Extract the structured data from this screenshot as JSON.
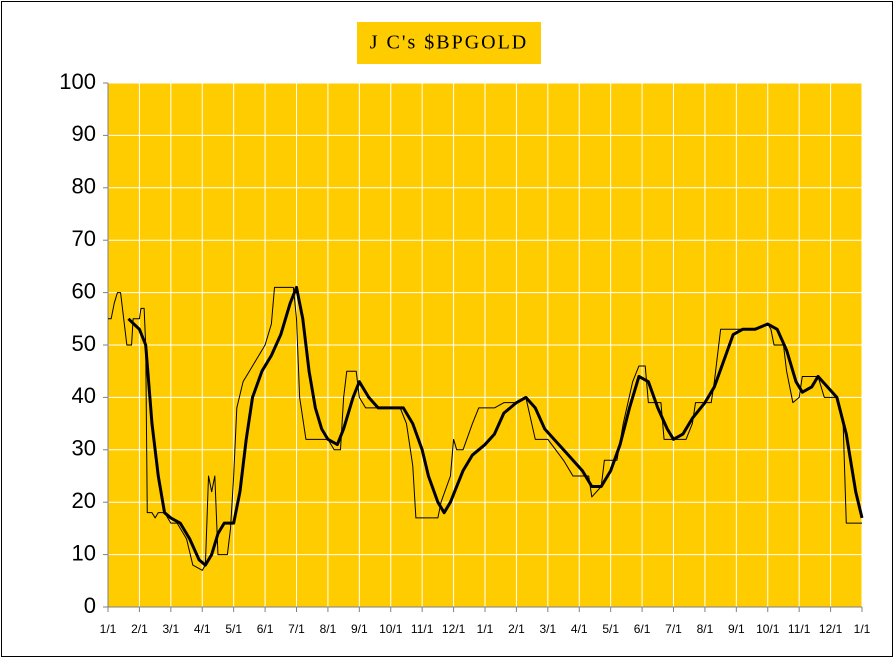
{
  "chart_data": {
    "type": "line",
    "title": "J C's $BPGOLD",
    "plot_background": "#FFCC00",
    "grid": true,
    "grid_color": "#ffffff",
    "xlim": [
      0,
      24
    ],
    "ylim": [
      0,
      100
    ],
    "yticks": [
      0,
      10,
      20,
      30,
      40,
      50,
      60,
      70,
      80,
      90,
      100
    ],
    "xticks": [
      {
        "value": 0,
        "label": "1/1"
      },
      {
        "value": 1,
        "label": "2/1"
      },
      {
        "value": 2,
        "label": "3/1"
      },
      {
        "value": 3,
        "label": "4/1"
      },
      {
        "value": 4,
        "label": "5/1"
      },
      {
        "value": 5,
        "label": "6/1"
      },
      {
        "value": 6,
        "label": "7/1"
      },
      {
        "value": 7,
        "label": "8/1"
      },
      {
        "value": 8,
        "label": "9/1"
      },
      {
        "value": 9,
        "label": "10/1"
      },
      {
        "value": 10,
        "label": "11/1"
      },
      {
        "value": 11,
        "label": "12/1"
      },
      {
        "value": 12,
        "label": "1/1"
      },
      {
        "value": 13,
        "label": "2/1"
      },
      {
        "value": 14,
        "label": "3/1"
      },
      {
        "value": 15,
        "label": "4/1"
      },
      {
        "value": 16,
        "label": "5/1"
      },
      {
        "value": 17,
        "label": "6/1"
      },
      {
        "value": 18,
        "label": "7/1"
      },
      {
        "value": 19,
        "label": "8/1"
      },
      {
        "value": 20,
        "label": "9/1"
      },
      {
        "value": 21,
        "label": "10/1"
      },
      {
        "value": 22,
        "label": "11/1"
      },
      {
        "value": 23,
        "label": "12/1"
      },
      {
        "value": 24,
        "label": "1/1"
      }
    ],
    "series": [
      {
        "color": "#000000",
        "line_width": 1,
        "x": [
          0,
          0.1,
          0.2,
          0.3,
          0.4,
          0.5,
          0.6,
          0.75,
          0.8,
          1.0,
          1.05,
          1.15,
          1.2,
          1.25,
          1.4,
          1.5,
          1.6,
          1.8,
          2.0,
          2.2,
          2.3,
          2.5,
          2.7,
          3.0,
          3.1,
          3.2,
          3.3,
          3.4,
          3.5,
          3.8,
          3.9,
          4.0,
          4.1,
          4.3,
          4.5,
          4.7,
          5.0,
          5.2,
          5.3,
          5.9,
          6.0,
          6.1,
          6.3,
          7.0,
          7.2,
          7.4,
          7.5,
          7.6,
          7.9,
          8.0,
          8.2,
          9.3,
          9.5,
          9.7,
          9.8,
          10.5,
          10.6,
          10.9,
          11.0,
          11.1,
          11.3,
          11.6,
          11.8,
          12.0,
          12.3,
          12.6,
          13.0,
          13.3,
          13.6,
          14.0,
          14.5,
          14.8,
          15.3,
          15.4,
          15.7,
          15.8,
          16.2,
          16.4,
          16.7,
          16.9,
          17.1,
          17.2,
          17.6,
          17.7,
          18.4,
          18.6,
          18.7,
          19.2,
          19.3,
          19.5,
          20.5,
          21.0,
          21.1,
          21.2,
          21.5,
          21.6,
          21.8,
          22.0,
          22.1,
          22.6,
          22.8,
          23.2,
          23.4,
          23.5,
          24.0
        ],
        "values": [
          55,
          55,
          58,
          60,
          60,
          55,
          50,
          50,
          55,
          55,
          57,
          57,
          50,
          18,
          18,
          17,
          18,
          18,
          16,
          16,
          15,
          13,
          8,
          7,
          8,
          25,
          22,
          25,
          10,
          10,
          15,
          25,
          38,
          43,
          45,
          47,
          50,
          54,
          61,
          61,
          55,
          40,
          32,
          32,
          30,
          30,
          40,
          45,
          45,
          40,
          38,
          38,
          35,
          27,
          17,
          17,
          20,
          25,
          32,
          30,
          30,
          35,
          38,
          38,
          38,
          39,
          39,
          40,
          32,
          32,
          28,
          25,
          25,
          21,
          23,
          28,
          28,
          35,
          43,
          46,
          46,
          39,
          39,
          32,
          32,
          35,
          39,
          39,
          43,
          53,
          53,
          54,
          53,
          50,
          50,
          45,
          39,
          40,
          44,
          44,
          40,
          40,
          35,
          16,
          16
        ]
      },
      {
        "color": "#000000",
        "line_width": 3,
        "x": [
          0.65,
          1.0,
          1.2,
          1.4,
          1.6,
          1.8,
          2.0,
          2.3,
          2.6,
          2.9,
          3.1,
          3.3,
          3.5,
          3.7,
          4.0,
          4.2,
          4.4,
          4.6,
          4.9,
          5.2,
          5.5,
          5.8,
          6.0,
          6.2,
          6.4,
          6.6,
          6.8,
          7.0,
          7.3,
          7.5,
          7.8,
          8.0,
          8.3,
          8.6,
          9.0,
          9.4,
          9.7,
          10.0,
          10.2,
          10.5,
          10.7,
          10.9,
          11.1,
          11.3,
          11.6,
          12.0,
          12.3,
          12.6,
          13.0,
          13.3,
          13.6,
          13.9,
          14.2,
          14.5,
          14.8,
          15.1,
          15.4,
          15.7,
          16.0,
          16.3,
          16.6,
          16.9,
          17.2,
          17.5,
          17.8,
          18.0,
          18.3,
          18.6,
          19.0,
          19.3,
          19.6,
          19.9,
          20.2,
          20.6,
          21.0,
          21.3,
          21.6,
          21.9,
          22.1,
          22.4,
          22.6,
          22.9,
          23.2,
          23.5,
          23.8,
          24.0
        ],
        "values": [
          55,
          53,
          50,
          35,
          25,
          18,
          17,
          16,
          13,
          9,
          8,
          10,
          14,
          16,
          16,
          22,
          32,
          40,
          45,
          48,
          52,
          58,
          61,
          55,
          45,
          38,
          34,
          32,
          31,
          34,
          40,
          43,
          40,
          38,
          38,
          38,
          35,
          30,
          25,
          20,
          18,
          20,
          23,
          26,
          29,
          31,
          33,
          37,
          39,
          40,
          38,
          34,
          32,
          30,
          28,
          26,
          23,
          23,
          26,
          31,
          38,
          44,
          43,
          38,
          34,
          32,
          33,
          36,
          39,
          42,
          47,
          52,
          53,
          53,
          54,
          53,
          49,
          43,
          41,
          42,
          44,
          42,
          40,
          33,
          22,
          17
        ]
      }
    ]
  }
}
